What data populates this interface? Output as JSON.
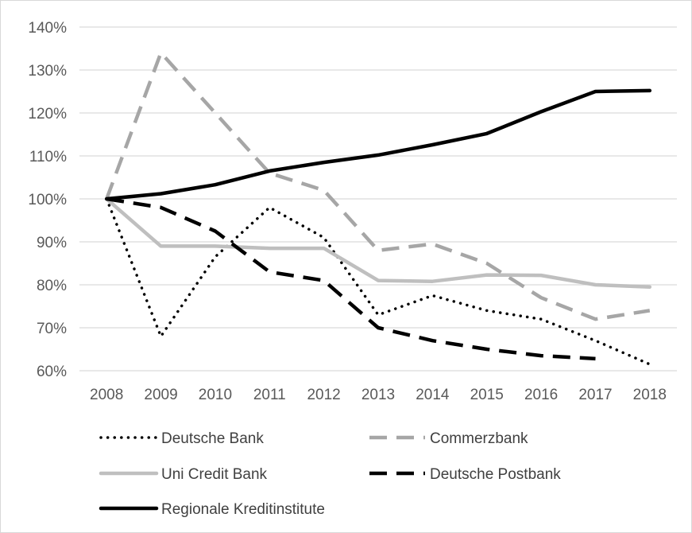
{
  "chart_data": {
    "type": "line",
    "x": [
      "2008",
      "2009",
      "2010",
      "2011",
      "2012",
      "2013",
      "2014",
      "2015",
      "2016",
      "2017",
      "2018"
    ],
    "ylim": [
      0.6,
      1.4
    ],
    "yticks": [
      "60%",
      "70%",
      "80%",
      "90%",
      "100%",
      "110%",
      "120%",
      "130%",
      "140%"
    ],
    "ytick_values": [
      0.6,
      0.7,
      0.8,
      0.9,
      1.0,
      1.1,
      1.2,
      1.3,
      1.4
    ],
    "grid": "horizontal",
    "legend_position": "bottom",
    "series": [
      {
        "name": "Deutsche Bank",
        "style": "dotted",
        "color": "#000000",
        "values": [
          1.0,
          0.68,
          0.865,
          0.98,
          0.91,
          0.73,
          0.775,
          0.74,
          0.72,
          0.67,
          0.615
        ]
      },
      {
        "name": "Commerzbank",
        "style": "dashed",
        "color": "#a6a6a6",
        "values": [
          1.0,
          1.34,
          1.2,
          1.06,
          1.02,
          0.88,
          0.895,
          0.85,
          0.77,
          0.72,
          0.74
        ]
      },
      {
        "name": "Uni Credit Bank",
        "style": "solid",
        "color": "#bfbfbf",
        "values": [
          1.0,
          0.89,
          0.89,
          0.885,
          0.885,
          0.81,
          0.808,
          0.823,
          0.822,
          0.8,
          0.795
        ]
      },
      {
        "name": "Deutsche Postbank",
        "style": "dashed",
        "color": "#000000",
        "values": [
          1.0,
          0.98,
          0.925,
          0.83,
          0.81,
          0.7,
          0.67,
          0.65,
          0.635,
          0.628,
          null
        ]
      },
      {
        "name": "Regionale Kreditinstitute",
        "style": "solid",
        "color": "#000000",
        "values": [
          1.0,
          1.012,
          1.033,
          1.065,
          1.085,
          1.102,
          1.126,
          1.152,
          1.203,
          1.25,
          1.252
        ]
      }
    ]
  }
}
